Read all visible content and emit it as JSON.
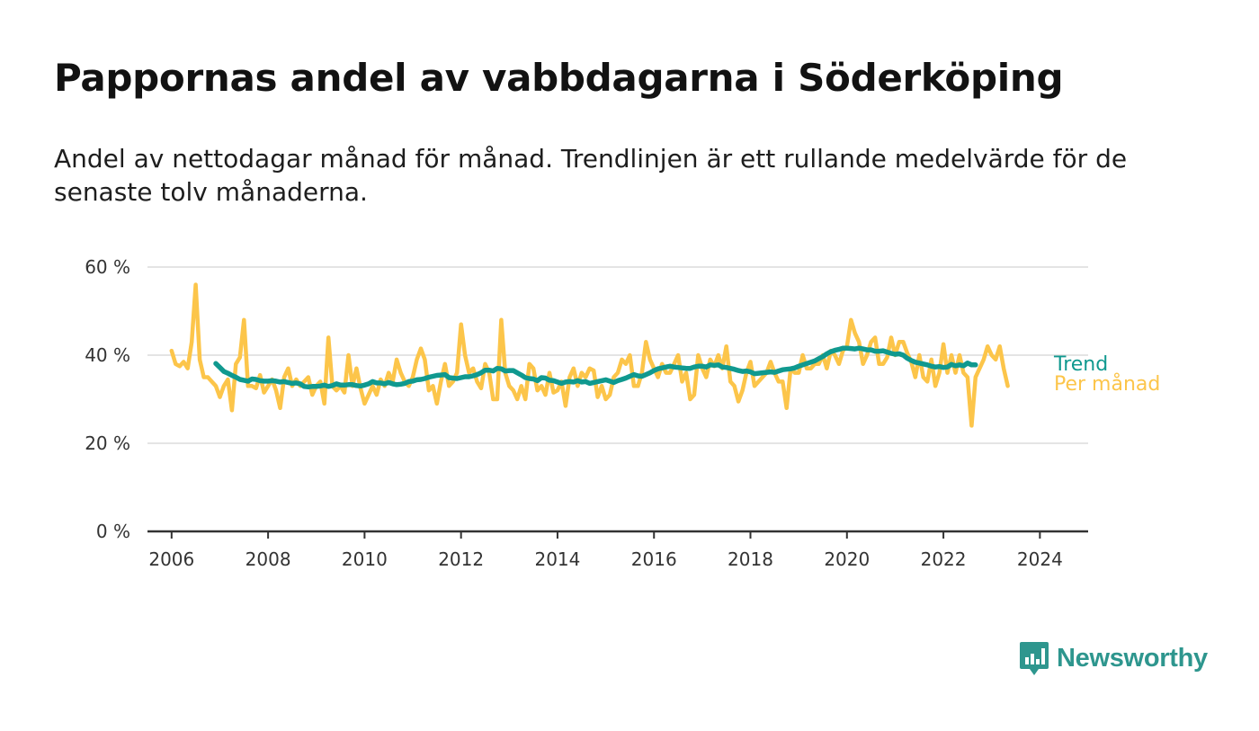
{
  "title": "Pappornas andel av vabbdagarna i Söderköping",
  "subtitle": "Andel av nettodagar månad för månad. Trendlinjen är ett rullande medelvärde för de senaste tolv månaderna.",
  "logo_text": "Newsworthy",
  "colors": {
    "monthly": "#fcc54a",
    "trend": "#10998f",
    "grid": "#dcdcdc",
    "axis": "#333333",
    "logo": "#2e968e"
  },
  "chart_data": {
    "type": "line",
    "x_axis": {
      "type": "date",
      "range": [
        "2005-07",
        "2025-01"
      ],
      "ticks": [
        "2006",
        "2008",
        "2010",
        "2012",
        "2014",
        "2016",
        "2018",
        "2020",
        "2022",
        "2024"
      ]
    },
    "y_axis": {
      "range": [
        0,
        60
      ],
      "ticks": [
        {
          "value": 0,
          "label": "0 %"
        },
        {
          "value": 20,
          "label": "20 %"
        },
        {
          "value": 40,
          "label": "40 %"
        },
        {
          "value": 60,
          "label": "60 %"
        }
      ]
    },
    "grid": true,
    "series": [
      {
        "name": "Per månad",
        "start": "2006-01",
        "frequency": "monthly",
        "values": [
          41,
          38,
          37.5,
          38.5,
          37,
          43,
          56,
          39,
          35,
          35,
          34,
          33,
          30.5,
          33,
          34.5,
          27.5,
          38,
          39.5,
          48,
          33,
          33,
          32.5,
          35.5,
          31.5,
          33,
          34.5,
          32,
          28,
          35,
          37,
          33,
          34.5,
          33,
          34,
          35,
          31,
          33,
          34,
          29,
          44,
          33,
          32,
          33,
          31.5,
          40,
          33,
          37,
          32.5,
          29,
          31,
          33,
          31,
          34.5,
          33,
          36,
          34,
          39,
          36,
          34,
          33,
          35,
          39,
          41.5,
          39,
          32,
          33,
          29,
          34,
          38,
          33,
          34,
          36,
          47,
          40,
          36,
          37,
          34,
          32.5,
          38,
          36,
          30,
          30,
          48,
          36,
          33,
          32,
          30,
          33,
          30,
          38,
          37,
          32,
          33,
          31,
          36,
          31.5,
          32,
          34,
          28.5,
          35,
          37,
          33,
          36,
          35,
          37,
          36.5,
          30.5,
          33,
          30,
          31,
          35,
          36,
          39,
          38,
          40,
          33,
          33,
          36,
          43,
          39,
          37,
          35,
          38,
          36,
          36,
          38,
          40,
          34,
          36,
          30,
          31,
          40,
          37,
          35,
          39,
          37.5,
          40,
          37,
          42,
          34,
          33,
          29.5,
          32,
          36,
          38.5,
          33,
          34,
          35,
          36,
          38.5,
          36,
          34,
          34,
          28,
          37,
          36,
          36,
          40,
          37,
          37,
          38,
          38,
          40,
          37,
          41,
          40,
          38,
          41,
          42,
          48,
          45,
          43,
          38,
          40,
          43,
          44,
          38,
          38,
          39.5,
          44,
          40,
          43,
          43,
          40.5,
          38.5,
          35,
          40,
          35,
          34,
          39,
          33,
          36,
          42.5,
          36,
          40,
          36,
          40,
          36,
          35,
          24,
          35,
          37,
          39,
          42,
          40,
          39,
          42,
          37,
          33
        ]
      },
      {
        "name": "Trend",
        "start": "2006-12",
        "frequency": "monthly",
        "values": [
          38.1,
          37.2,
          36.3,
          35.9,
          35.4,
          35,
          34.5,
          34.3,
          34.1,
          34.6,
          34.5,
          34.2,
          34.1,
          34.1,
          34.2,
          34.1,
          33.9,
          34,
          33.8,
          33.6,
          33.7,
          33.5,
          32.9,
          32.8,
          32.9,
          32.9,
          33,
          33.2,
          32.9,
          33.1,
          33.5,
          33.2,
          33.2,
          33.3,
          33.3,
          33.1,
          33,
          33.2,
          33.5,
          34,
          33.7,
          33.7,
          33.5,
          33.8,
          33.5,
          33.3,
          33.4,
          33.6,
          34,
          34.1,
          34.4,
          34.5,
          34.7,
          35,
          35.2,
          35.4,
          35.5,
          35.6,
          34.9,
          34.8,
          34.7,
          34.9,
          35.1,
          35.1,
          35.3,
          35.6,
          36,
          36.6,
          36.6,
          36.4,
          37,
          36.9,
          36.4,
          36.5,
          36.5,
          36,
          35.5,
          34.9,
          34.7,
          34.6,
          34.2,
          34.9,
          34.8,
          34.3,
          34.2,
          33.9,
          33.6,
          33.9,
          34,
          33.9,
          34.2,
          33.9,
          34,
          33.6,
          33.8,
          34,
          34.2,
          34.4,
          34.1,
          33.8,
          34.2,
          34.5,
          34.8,
          35.2,
          35.6,
          35.3,
          35.2,
          35.6,
          36,
          36.5,
          36.9,
          37.1,
          37.3,
          37.5,
          37.3,
          37.2,
          37.1,
          37,
          37,
          37.3,
          37.5,
          37.5,
          37.3,
          37.8,
          37.7,
          37.8,
          37.3,
          37.2,
          37,
          36.8,
          36.5,
          36.3,
          36.4,
          36.2,
          35.8,
          35.9,
          36,
          36.1,
          36.2,
          36.1,
          36.4,
          36.7,
          36.8,
          36.9,
          37.1,
          37.5,
          37.8,
          38.1,
          38.4,
          38.7,
          39.2,
          39.7,
          40.3,
          40.8,
          41.1,
          41.3,
          41.6,
          41.6,
          41.5,
          41.4,
          41.6,
          41.4,
          41.2,
          41.2,
          40.9,
          40.9,
          41,
          40.7,
          40.4,
          40.2,
          40.3,
          40,
          39.3,
          38.8,
          38.4,
          38.2,
          38,
          37.8,
          37.5,
          37.3,
          37.4,
          37.2,
          37.3,
          37.9,
          37.6,
          37.8,
          37.6,
          38.2,
          37.8,
          37.8
        ]
      }
    ]
  }
}
